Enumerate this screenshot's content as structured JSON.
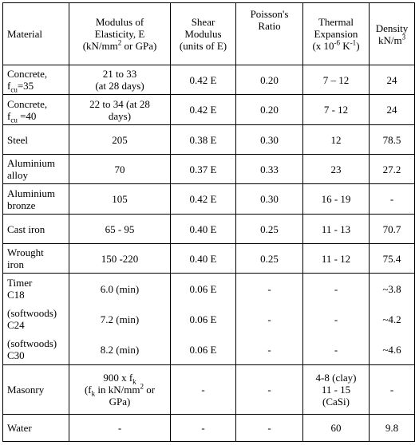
{
  "headers": {
    "material": "Material",
    "modulus": [
      "Modulus of",
      "Elasticity, E",
      "(kN/mm",
      "2",
      " or GPa)"
    ],
    "shear": [
      "Shear",
      "Modulus",
      "(units of E)"
    ],
    "poisson": [
      "Poisson's",
      "Ratio"
    ],
    "thermal": [
      "Thermal",
      "Expansion",
      "(x 10",
      "-6",
      " K",
      "-1",
      ")"
    ],
    "density": [
      "Density",
      "kN/m",
      "3"
    ]
  },
  "rows": {
    "c35": {
      "mat1": "Concrete,",
      "mat2a": "f",
      "mat2sub": "cu",
      "mat2b": "=35",
      "e1": "21 to 33",
      "e2": "(at 28 days)",
      "shear": "0.42 E",
      "poisson": "0.20",
      "thermal": "7 – 12",
      "density": "24"
    },
    "c40": {
      "mat1": "Concrete,",
      "mat2a": "f",
      "mat2sub": "cu",
      "mat2b": " =40",
      "e1": "22 to 34 (at 28",
      "e2": "days)",
      "shear": "0.42 E",
      "poisson": "0.20",
      "thermal": "7 - 12",
      "density": "24"
    },
    "steel": {
      "mat": "Steel",
      "e": "205",
      "shear": "0.38 E",
      "poisson": "0.30",
      "thermal": "12",
      "density": "78.5"
    },
    "alalloy": {
      "mat1": "Aluminium",
      "mat2": "alloy",
      "e": "70",
      "shear": "0.37 E",
      "poisson": "0.33",
      "thermal": "23",
      "density": "27.2"
    },
    "albronze": {
      "mat1": "Aluminium",
      "mat2": "bronze",
      "e": "105",
      "shear": "0.42 E",
      "poisson": "0.30",
      "thermal": "16 - 19",
      "density": "-"
    },
    "castiron": {
      "mat": "Cast iron",
      "e": "65 - 95",
      "shear": "0.40 E",
      "poisson": "0.25",
      "thermal": "11 - 13",
      "density": "70.7"
    },
    "wrought": {
      "mat1": "Wrought",
      "mat2": "iron",
      "e": "150 -220",
      "shear": "0.40 E",
      "poisson": "0.25",
      "thermal": "11 - 12",
      "density": "75.4"
    },
    "timber": {
      "materials": [
        [
          "Timer",
          "C18"
        ],
        [
          "(softwoods)",
          "C24"
        ],
        [
          "(softwoods)",
          "C30"
        ]
      ],
      "e": [
        "6.0 (min)",
        "7.2 (min)",
        "8.2 (min)"
      ],
      "shear": [
        "0.06 E",
        "0.06 E",
        "0.06 E"
      ],
      "poisson": [
        "-",
        "-",
        "-"
      ],
      "thermal": [
        "-",
        "-",
        "-"
      ],
      "density": [
        "~3.8",
        "~4.2",
        "~4.6"
      ]
    },
    "masonry": {
      "mat": "Masonry",
      "e1": "900 x f",
      "e1sub": "k",
      "e2a": "(f",
      "e2sub": "k",
      "e2b": " in kN/mm",
      "e2sup": "2",
      "e2c": " or",
      "e3": "GPa)",
      "shear": "-",
      "poisson": "-",
      "thermal1": "4-8 (clay)",
      "thermal2": "11 - 15",
      "thermal3": "(CaSi)",
      "density": "-"
    },
    "water": {
      "mat": "Water",
      "e": "-",
      "shear": "-",
      "poisson": "-",
      "thermal": "60",
      "density": "9.8"
    }
  }
}
